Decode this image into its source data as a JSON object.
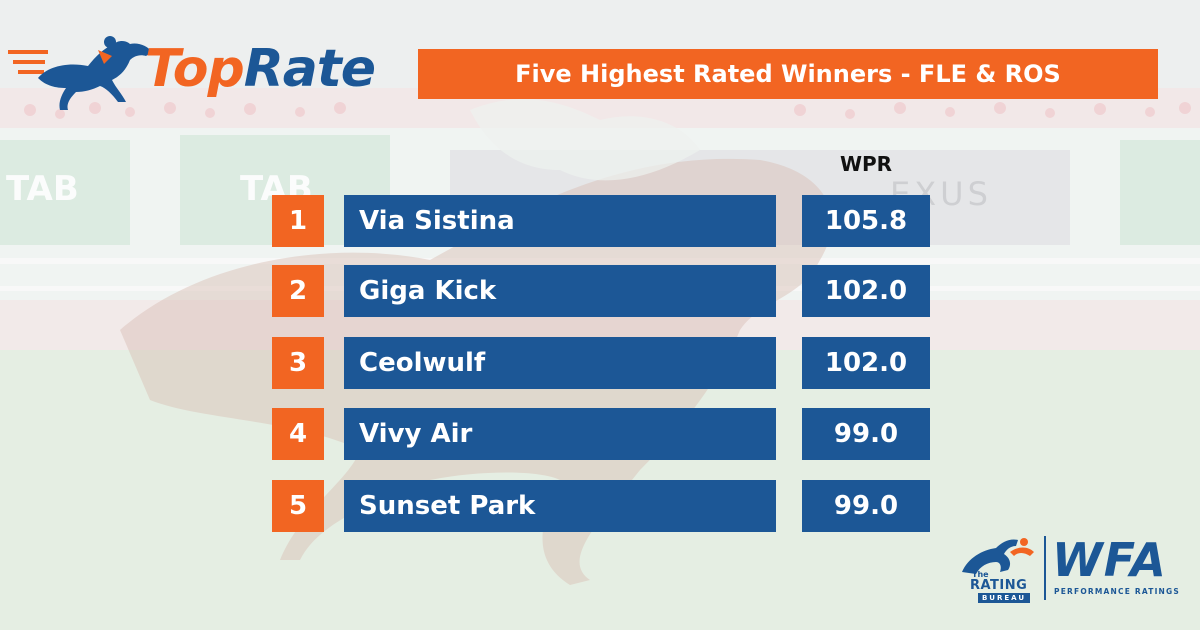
{
  "brand": {
    "logo_top": "Top",
    "logo_rate": "Rate",
    "orange": "#f26522",
    "blue": "#1c5796"
  },
  "title": "Five Highest Rated Winners - FLE & ROS",
  "column_header": "WPR",
  "rows": [
    {
      "rank": "1",
      "name": "Via Sistina",
      "wpr": "105.8"
    },
    {
      "rank": "2",
      "name": "Giga Kick",
      "wpr": "102.0"
    },
    {
      "rank": "3",
      "name": "Ceolwulf",
      "wpr": "102.0"
    },
    {
      "rank": "4",
      "name": "Vivy Air",
      "wpr": "99.0"
    },
    {
      "rank": "5",
      "name": "Sunset Park",
      "wpr": "99.0"
    }
  ],
  "footer_logo": {
    "the": "The",
    "rating": "RATING",
    "bureau": "BUREAU",
    "wfa": "WFA",
    "subtitle": "PERFORMANCE RATINGS"
  },
  "background": {
    "sponsor_left": "TAB",
    "sponsor_right": "LEXUS"
  }
}
